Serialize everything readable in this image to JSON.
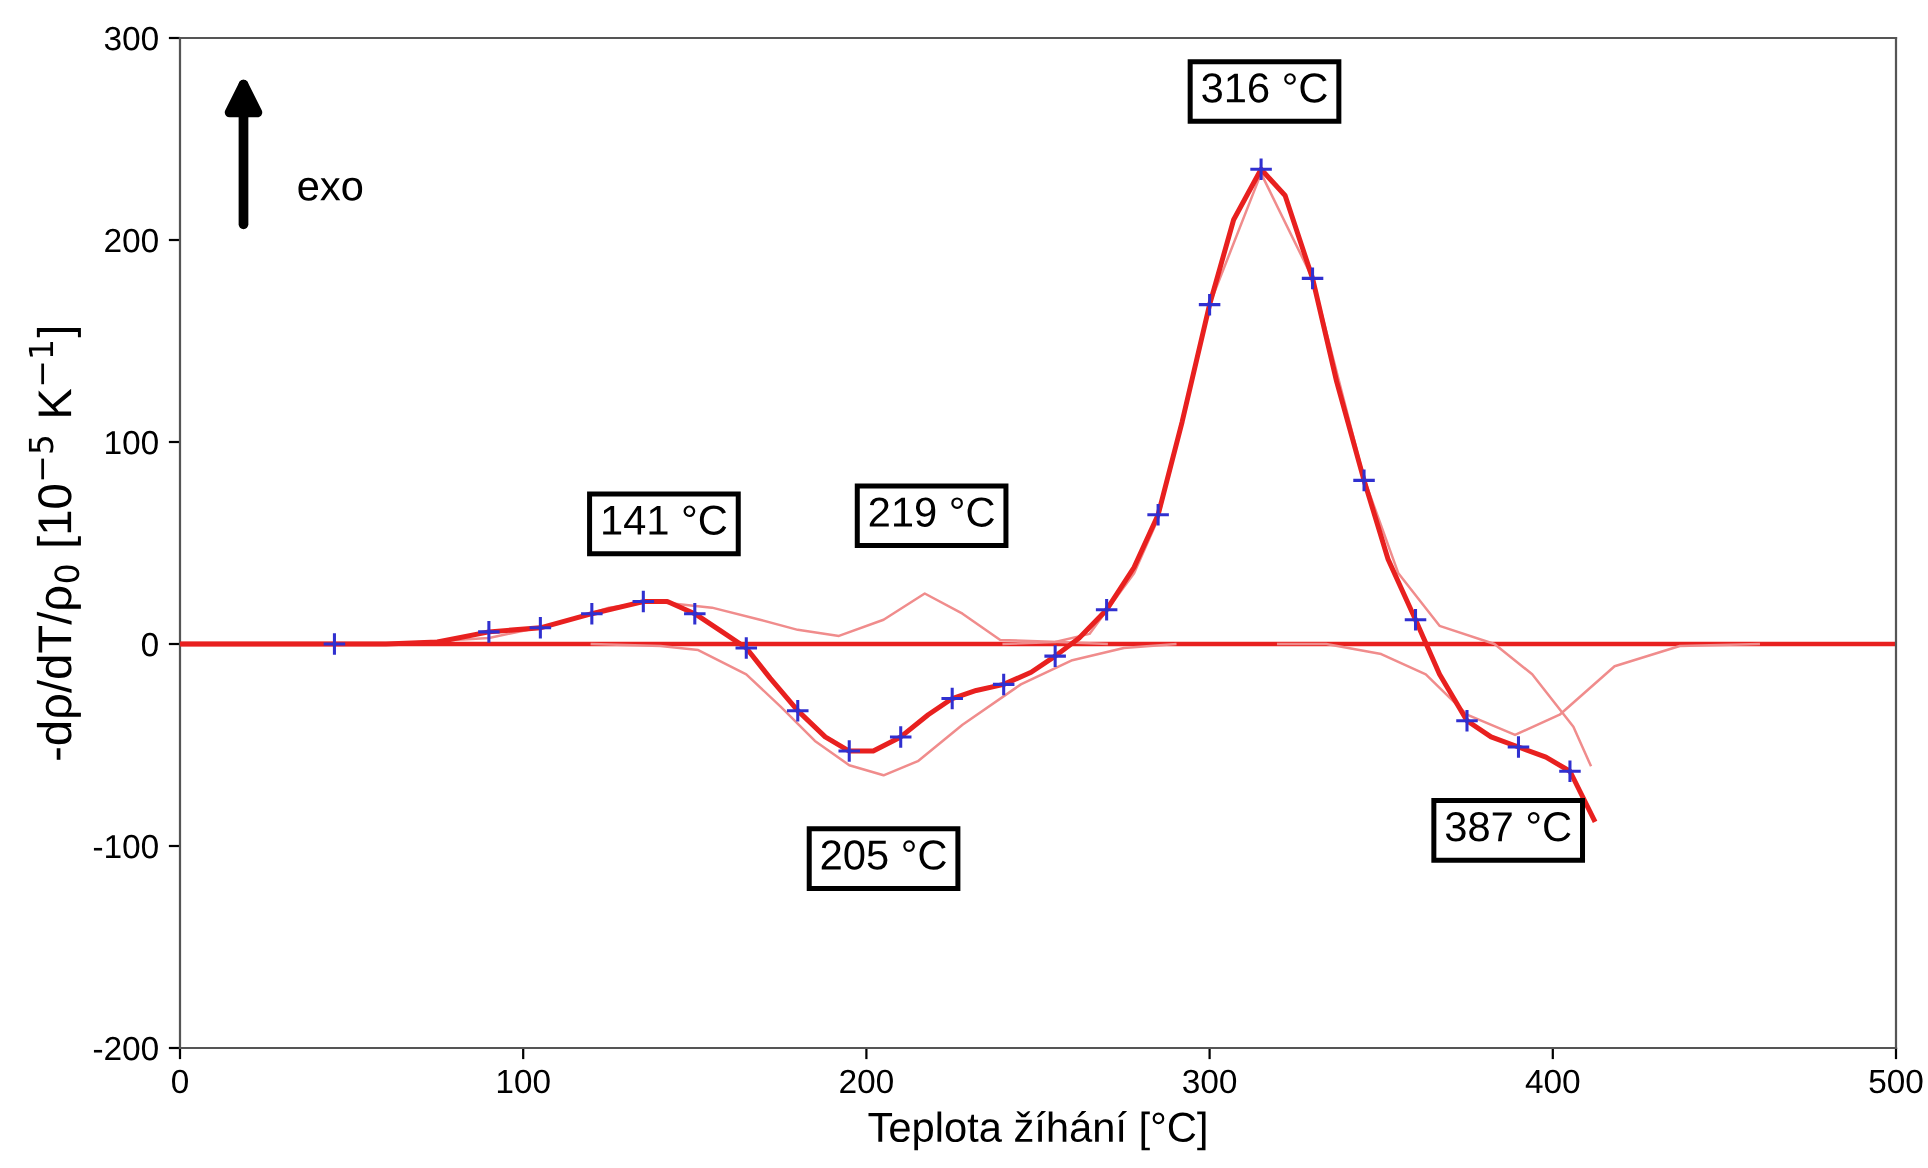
{
  "chart_data": {
    "type": "line",
    "xlabel": "Teplota žíhání [°C]",
    "ylabel": "-dρ/dT/ρ$_{0}$ [10$^{−5}$ K$^{−1}$]",
    "xlim": [
      0,
      500
    ],
    "xticks": [
      0,
      100,
      200,
      300,
      400,
      500
    ],
    "ylim": [
      -200,
      300
    ],
    "yticks": [
      -200,
      -100,
      0,
      100,
      200,
      300
    ],
    "grid": false,
    "legend": false,
    "ref_lines": [
      {
        "axis": "y",
        "value": 0,
        "color": "#e8201f"
      }
    ],
    "series": [
      {
        "color": "#e8201f",
        "x": [
          0,
          60,
          75,
          90,
          105,
          120,
          135,
          142,
          150,
          158,
          165,
          172,
          180,
          188,
          195,
          202,
          210,
          218,
          225,
          232,
          240,
          248,
          255,
          262,
          270,
          278,
          285,
          292,
          300,
          307,
          315,
          322,
          330,
          337,
          345,
          352,
          360,
          367,
          375,
          382,
          390,
          398,
          405,
          412
        ],
        "values": [
          0,
          0,
          1,
          6,
          8,
          15,
          21,
          21,
          15,
          6,
          -2,
          -17,
          -33,
          -46,
          -53,
          -53,
          -46,
          -35,
          -27,
          -23,
          -20,
          -14,
          -6,
          3,
          17,
          38,
          64,
          110,
          168,
          210,
          235,
          222,
          181,
          130,
          81,
          42,
          12,
          -15,
          -38,
          -46,
          -51,
          -56,
          -63,
          -87
        ]
      },
      {
        "color": "#f08c8c",
        "x": [
          60,
          90,
          110,
          125,
          138,
          155,
          169,
          180,
          192,
          205,
          217,
          228,
          239,
          256,
          270
        ],
        "values": [
          0,
          3,
          10,
          18,
          21,
          18,
          12,
          7,
          4,
          12,
          25,
          15,
          2,
          1,
          0
        ]
      },
      {
        "color": "#f08c8c",
        "x": [
          120,
          140,
          151,
          165,
          175,
          185,
          195,
          205,
          215,
          228,
          245,
          260,
          275,
          290
        ],
        "values": [
          0,
          -1,
          -3,
          -15,
          -31,
          -48,
          -60,
          -65,
          -58,
          -40,
          -20,
          -8,
          -2,
          0
        ]
      },
      {
        "color": "#f08c8c",
        "x": [
          240,
          255,
          265,
          278,
          285,
          300,
          315,
          330,
          345,
          355,
          367,
          383,
          394,
          406,
          411
        ],
        "values": [
          0,
          1,
          5,
          35,
          62,
          168,
          233,
          181,
          82,
          35,
          9,
          0,
          -15,
          -41,
          -60
        ]
      },
      {
        "color": "#f08c8c",
        "x": [
          320,
          334,
          350,
          363,
          375,
          389,
          402,
          418,
          437,
          460
        ],
        "values": [
          0,
          0,
          -5,
          -15,
          -35,
          -45,
          -35,
          -11,
          -1,
          0
        ]
      },
      {
        "type": "scatter",
        "color": "#3030d0",
        "marker": "cross",
        "x": [
          45,
          90,
          105,
          120,
          135,
          150,
          165,
          180,
          195,
          210,
          225,
          240,
          255,
          270,
          285,
          300,
          315,
          330,
          345,
          360,
          375,
          390,
          405
        ],
        "values": [
          0,
          6,
          8,
          15,
          21,
          15,
          -2,
          -33,
          -53,
          -46,
          -27,
          -20,
          -6,
          17,
          64,
          168,
          235,
          181,
          81,
          12,
          -38,
          -51,
          -63
        ]
      }
    ],
    "annotations": [
      {
        "text": "141 °C",
        "x": 141,
        "y": 21
      },
      {
        "text": "219 °C",
        "x": 219,
        "y": 25
      },
      {
        "text": "205 °C",
        "x": 205,
        "y": -65
      },
      {
        "text": "316 °C",
        "x": 316,
        "y": 235
      },
      {
        "text": "387 °C",
        "x": 387,
        "y": -51
      },
      "exo"
    ]
  }
}
